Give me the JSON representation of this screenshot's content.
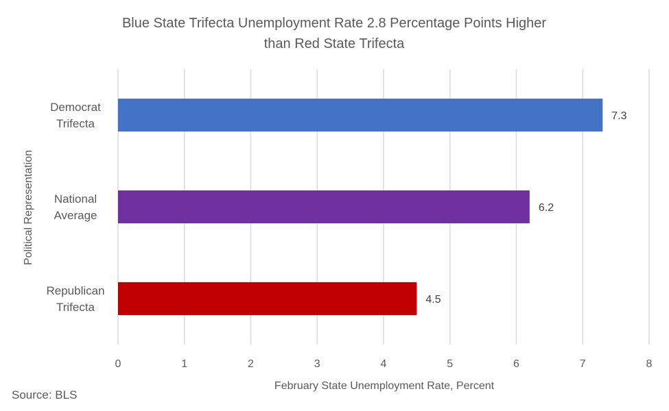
{
  "chart_data": {
    "type": "bar",
    "orientation": "horizontal",
    "title_lines": [
      "Blue State Trifecta Unemployment Rate 2.8 Percentage Points Higher",
      "than Red State Trifecta"
    ],
    "categories": [
      [
        "Democrat",
        "Trifecta"
      ],
      [
        "National",
        "Average"
      ],
      [
        "Republican",
        "Trifecta"
      ]
    ],
    "values": [
      7.3,
      6.2,
      4.5
    ],
    "data_labels": [
      "7.3",
      "6.2",
      "4.5"
    ],
    "colors": [
      "#4472C4",
      "#7030A0",
      "#C00000"
    ],
    "xlabel": "February State Unemployment Rate, Percent",
    "ylabel": "Political Representation",
    "xlim": [
      0,
      8
    ],
    "xticks": [
      "0",
      "1",
      "2",
      "3",
      "4",
      "5",
      "6",
      "7",
      "8"
    ],
    "grid": true,
    "gridline_color": "#D9D9D9"
  },
  "source": "Source: BLS"
}
